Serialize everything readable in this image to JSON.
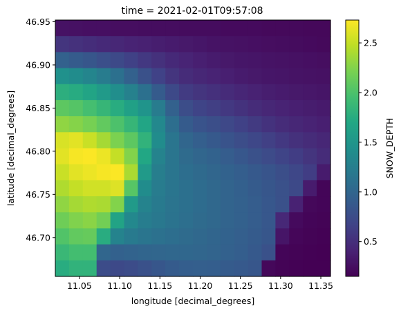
{
  "chart_data": {
    "type": "heatmap",
    "title": "time = 2021-02-01T09:57:08",
    "xlabel": "longitude [decimal_degrees]",
    "ylabel": "latitude [decimal_degrees]",
    "colorbar_label": "SNOW_DEPTH",
    "colormap": "viridis",
    "x_range": [
      11.02,
      11.362
    ],
    "y_range": [
      46.655,
      46.952
    ],
    "value_range": [
      0.15,
      2.73
    ],
    "x_ticks": [
      "11.05",
      "11.10",
      "11.15",
      "11.20",
      "11.25",
      "11.30",
      "11.35"
    ],
    "y_ticks": [
      "46.70",
      "46.75",
      "46.80",
      "46.85",
      "46.90",
      "46.95"
    ],
    "colorbar_ticks": [
      "0.5",
      "1.0",
      "1.5",
      "2.0",
      "2.5"
    ],
    "grid_shape": [
      16,
      20
    ],
    "values": [
      [
        0.28,
        0.27,
        0.26,
        0.26,
        0.25,
        0.25,
        0.24,
        0.24,
        0.24,
        0.23,
        0.23,
        0.23,
        0.22,
        0.22,
        0.22,
        0.21,
        0.21,
        0.21,
        0.2,
        0.2
      ],
      [
        0.55,
        0.52,
        0.49,
        0.46,
        0.44,
        0.41,
        0.39,
        0.37,
        0.35,
        0.33,
        0.31,
        0.29,
        0.28,
        0.27,
        0.26,
        0.25,
        0.24,
        0.23,
        0.22,
        0.21
      ],
      [
        0.95,
        0.9,
        0.85,
        0.78,
        0.72,
        0.65,
        0.58,
        0.52,
        0.46,
        0.42,
        0.38,
        0.35,
        0.33,
        0.31,
        0.3,
        0.29,
        0.28,
        0.27,
        0.26,
        0.25
      ],
      [
        1.45,
        1.4,
        1.32,
        1.22,
        1.1,
        0.95,
        0.8,
        0.66,
        0.55,
        0.48,
        0.44,
        0.41,
        0.38,
        0.35,
        0.33,
        0.31,
        0.3,
        0.29,
        0.28,
        0.27
      ],
      [
        1.78,
        1.74,
        1.66,
        1.55,
        1.42,
        1.28,
        1.1,
        0.9,
        0.72,
        0.6,
        0.55,
        0.51,
        0.47,
        0.43,
        0.4,
        0.37,
        0.35,
        0.33,
        0.32,
        0.3
      ],
      [
        2.08,
        2.04,
        1.96,
        1.86,
        1.75,
        1.62,
        1.48,
        1.22,
        0.95,
        0.76,
        0.68,
        0.63,
        0.58,
        0.53,
        0.48,
        0.44,
        0.41,
        0.38,
        0.36,
        0.34
      ],
      [
        2.3,
        2.26,
        2.2,
        2.1,
        2.0,
        1.86,
        1.68,
        1.35,
        1.08,
        0.9,
        0.82,
        0.77,
        0.71,
        0.65,
        0.59,
        0.53,
        0.48,
        0.44,
        0.41,
        0.38
      ],
      [
        2.58,
        2.62,
        2.52,
        2.38,
        2.22,
        2.08,
        1.82,
        1.4,
        1.15,
        1.0,
        0.93,
        0.88,
        0.82,
        0.76,
        0.7,
        0.64,
        0.58,
        0.52,
        0.48,
        0.44
      ],
      [
        2.62,
        2.7,
        2.72,
        2.66,
        2.5,
        2.25,
        1.7,
        1.3,
        1.15,
        1.05,
        1.0,
        0.96,
        0.91,
        0.86,
        0.8,
        0.74,
        0.68,
        0.62,
        0.55,
        0.48
      ],
      [
        2.52,
        2.62,
        2.66,
        2.7,
        2.72,
        2.4,
        1.55,
        1.25,
        1.15,
        1.08,
        1.04,
        1.0,
        0.96,
        0.92,
        0.88,
        0.83,
        0.77,
        0.7,
        0.62,
        0.35
      ],
      [
        2.42,
        2.5,
        2.55,
        2.55,
        2.6,
        2.05,
        1.4,
        1.22,
        1.15,
        1.1,
        1.06,
        1.02,
        0.98,
        0.94,
        0.9,
        0.85,
        0.8,
        0.72,
        0.35,
        0.18
      ],
      [
        2.3,
        2.38,
        2.42,
        2.4,
        2.25,
        1.55,
        1.3,
        1.2,
        1.14,
        1.1,
        1.06,
        1.02,
        0.98,
        0.95,
        0.91,
        0.86,
        0.8,
        0.4,
        0.2,
        0.18
      ],
      [
        2.16,
        2.24,
        2.28,
        2.18,
        1.65,
        1.35,
        1.24,
        1.18,
        1.13,
        1.09,
        1.05,
        1.02,
        0.98,
        0.95,
        0.91,
        0.86,
        0.45,
        0.22,
        0.18,
        0.17
      ],
      [
        2.02,
        2.1,
        2.12,
        1.75,
        1.3,
        1.2,
        1.15,
        1.11,
        1.08,
        1.05,
        1.02,
        0.99,
        0.96,
        0.93,
        0.9,
        0.85,
        0.3,
        0.19,
        0.17,
        0.16
      ],
      [
        1.88,
        1.95,
        1.95,
        1.0,
        0.95,
        0.97,
        0.99,
        1.0,
        1.01,
        1.01,
        1.0,
        0.98,
        0.95,
        0.92,
        0.88,
        0.8,
        0.18,
        0.17,
        0.16,
        0.15
      ],
      [
        1.75,
        1.82,
        1.82,
        0.75,
        0.72,
        0.75,
        0.8,
        0.85,
        0.9,
        0.92,
        0.93,
        0.92,
        0.9,
        0.88,
        0.85,
        0.2,
        0.17,
        0.16,
        0.15,
        0.15
      ]
    ]
  }
}
